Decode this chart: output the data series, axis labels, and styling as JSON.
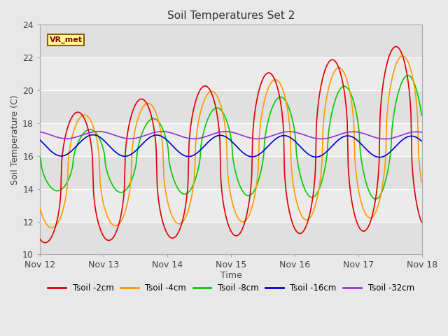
{
  "title": "Soil Temperatures Set 2",
  "xlabel": "Time",
  "ylabel": "Soil Temperature (C)",
  "ylim": [
    10,
    24
  ],
  "yticks": [
    10,
    12,
    14,
    16,
    18,
    20,
    22,
    24
  ],
  "annotation_text": "VR_met",
  "colors": {
    "Tsoil -2cm": "#dd0000",
    "Tsoil -4cm": "#ff9900",
    "Tsoil -8cm": "#00cc00",
    "Tsoil -16cm": "#0000cc",
    "Tsoil -32cm": "#9933cc"
  },
  "bg_bands": [
    "#e0e0e0",
    "#ebebeb"
  ],
  "fig_bg": "#e8e8e8",
  "legend_labels": [
    "Tsoil -2cm",
    "Tsoil -4cm",
    "Tsoil -8cm",
    "Tsoil -16cm",
    "Tsoil -32cm"
  ]
}
